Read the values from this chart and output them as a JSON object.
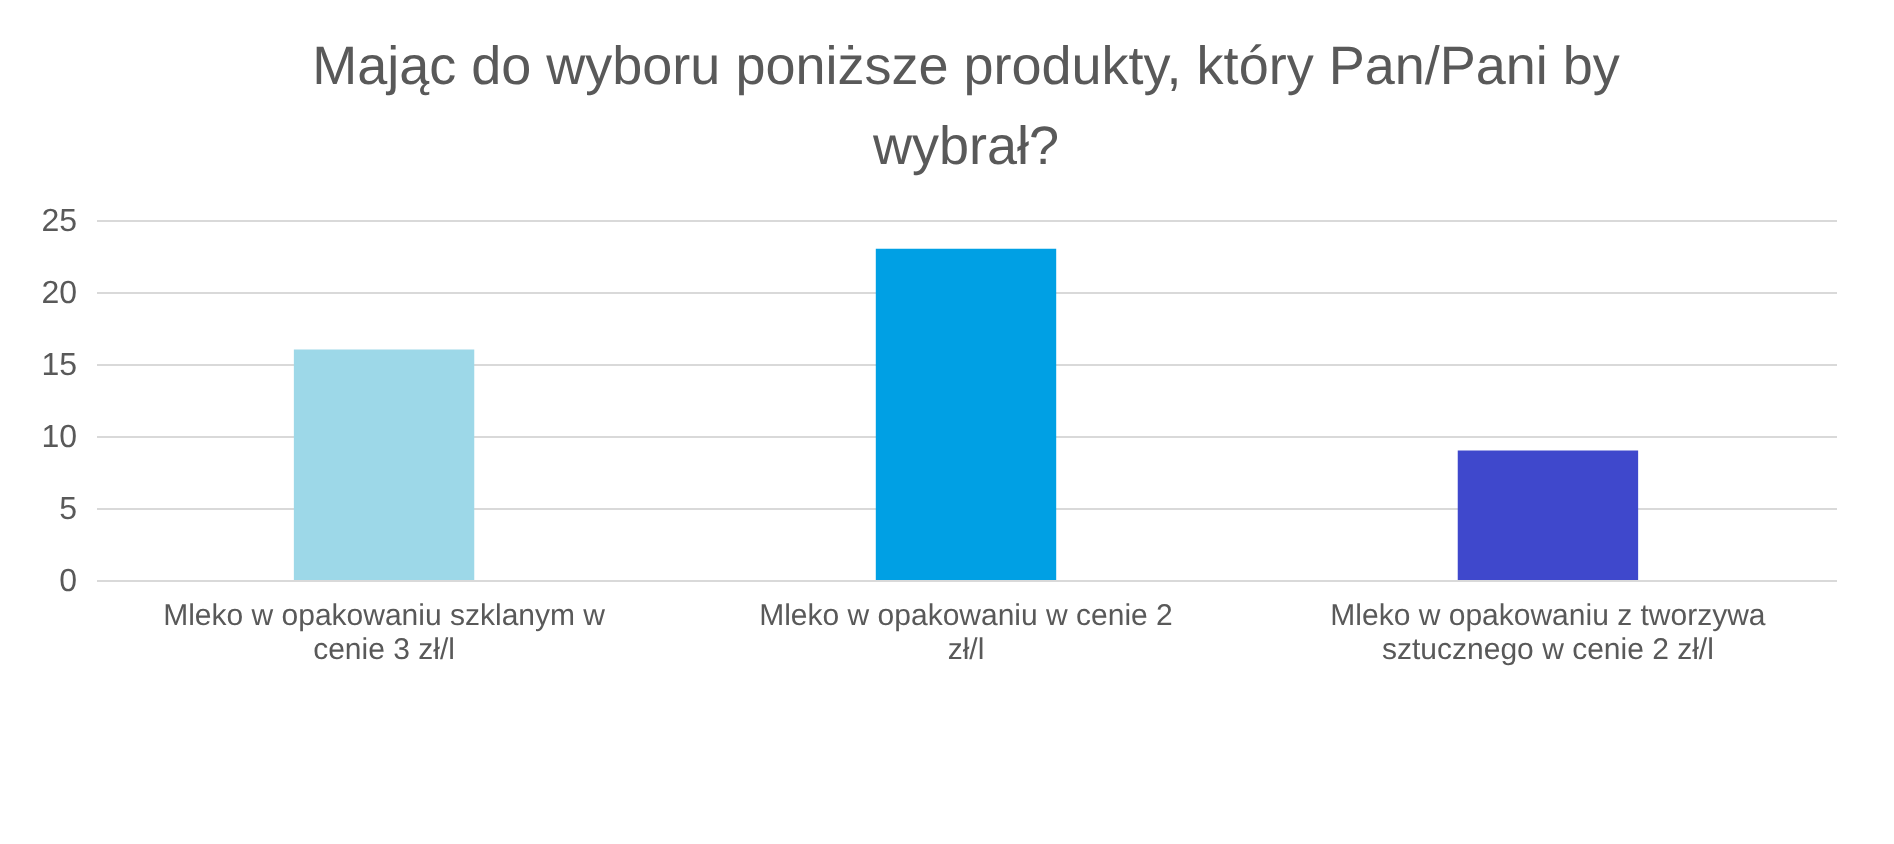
{
  "chart_data": {
    "type": "bar",
    "title": "Mając do wyboru poniższe produkty, który Pan/Pani by wybrał?",
    "categories": [
      "Mleko w opakowaniu szklanym w cenie 3 zł/l",
      "Mleko w opakowaniu w cenie 2 zł/l",
      "Mleko w opakowaniu z tworzywa sztucznego w cenie 2 zł/l"
    ],
    "values": [
      16,
      23,
      9
    ],
    "colors": [
      "#9dd8e8",
      "#00a0e4",
      "#3f48cc"
    ],
    "ylim": [
      0,
      25
    ],
    "yticks": [
      0,
      5,
      10,
      15,
      20,
      25
    ],
    "grid": "y"
  }
}
